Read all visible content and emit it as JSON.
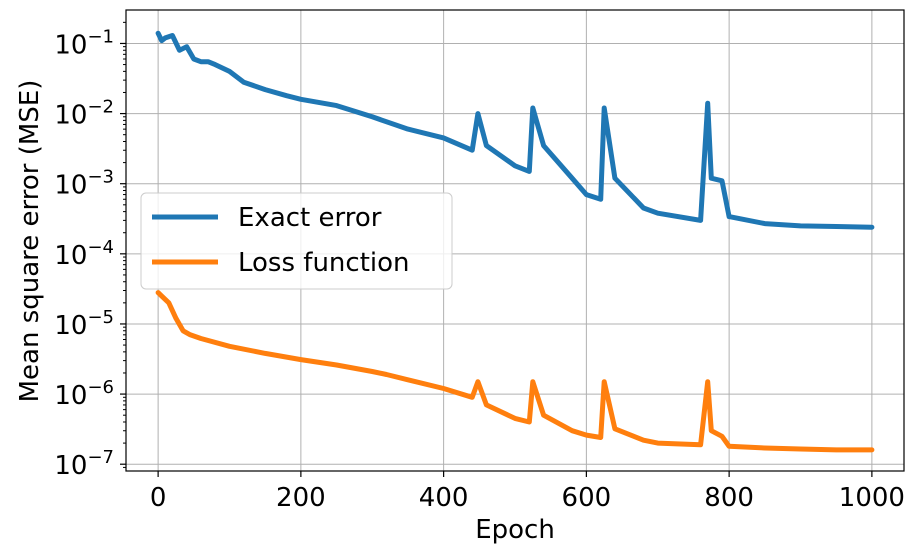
{
  "chart_data": {
    "type": "line",
    "xlabel": "Epoch",
    "ylabel": "Mean square error (MSE)",
    "xlim": [
      -45,
      1045
    ],
    "ylim": [
      8e-08,
      0.3
    ],
    "yscale": "log",
    "grid": true,
    "legend_position": "center-left",
    "x_ticks": [
      0,
      200,
      400,
      600,
      800,
      1000
    ],
    "x_tick_labels": [
      "0",
      "200",
      "400",
      "600",
      "800",
      "1000"
    ],
    "y_ticks": [
      1e-07,
      1e-06,
      1e-05,
      0.0001,
      0.001,
      0.01,
      0.1
    ],
    "y_tick_labels": [
      {
        "base": "10",
        "exp": "−7"
      },
      {
        "base": "10",
        "exp": "−6"
      },
      {
        "base": "10",
        "exp": "−5"
      },
      {
        "base": "10",
        "exp": "−4"
      },
      {
        "base": "10",
        "exp": "−3"
      },
      {
        "base": "10",
        "exp": "−2"
      },
      {
        "base": "10",
        "exp": "−1"
      }
    ],
    "series": [
      {
        "name": "Exact error",
        "color": "#1f77b4",
        "x": [
          0,
          5,
          10,
          20,
          30,
          40,
          50,
          60,
          70,
          80,
          100,
          120,
          150,
          180,
          200,
          250,
          300,
          350,
          400,
          440,
          448,
          460,
          500,
          520,
          525,
          540,
          580,
          600,
          620,
          625,
          640,
          680,
          700,
          760,
          770,
          775,
          790,
          800,
          850,
          900,
          950,
          1000
        ],
        "y": [
          0.14,
          0.11,
          0.12,
          0.13,
          0.08,
          0.09,
          0.06,
          0.055,
          0.055,
          0.05,
          0.04,
          0.028,
          0.022,
          0.018,
          0.016,
          0.013,
          0.009,
          0.006,
          0.0045,
          0.003,
          0.01,
          0.0035,
          0.0018,
          0.0015,
          0.012,
          0.0035,
          0.0012,
          0.0007,
          0.0006,
          0.012,
          0.0012,
          0.00045,
          0.00038,
          0.0003,
          0.014,
          0.0012,
          0.0011,
          0.00034,
          0.00027,
          0.00025,
          0.000245,
          0.00024
        ]
      },
      {
        "name": "Loss function",
        "color": "#ff7f0e",
        "x": [
          0,
          5,
          15,
          25,
          35,
          45,
          60,
          100,
          150,
          200,
          250,
          300,
          320,
          350,
          400,
          440,
          448,
          460,
          500,
          520,
          525,
          540,
          580,
          600,
          620,
          625,
          640,
          680,
          700,
          760,
          770,
          775,
          790,
          800,
          850,
          900,
          950,
          1000
        ],
        "y": [
          2.8e-05,
          2.5e-05,
          2e-05,
          1.2e-05,
          8e-06,
          7e-06,
          6.2e-06,
          4.8e-06,
          3.8e-06,
          3.1e-06,
          2.6e-06,
          2.1e-06,
          1.9e-06,
          1.6e-06,
          1.2e-06,
          9e-07,
          1.5e-06,
          7e-07,
          4.5e-07,
          4e-07,
          1.5e-06,
          5e-07,
          3e-07,
          2.6e-07,
          2.4e-07,
          1.5e-06,
          3.2e-07,
          2.2e-07,
          2e-07,
          1.9e-07,
          1.5e-06,
          3e-07,
          2.5e-07,
          1.8e-07,
          1.7e-07,
          1.65e-07,
          1.6e-07,
          1.6e-07
        ]
      }
    ]
  }
}
